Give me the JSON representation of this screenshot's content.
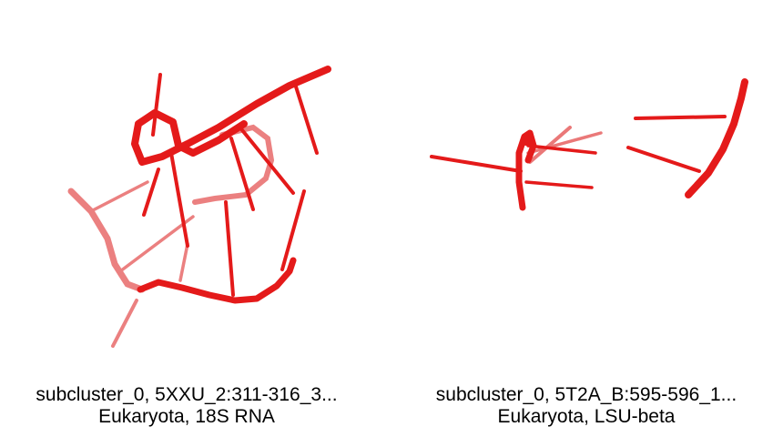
{
  "colors": {
    "background": "#ffffff",
    "rna_strand": "#e41a1a",
    "rna_strand_faded": "#e86a6a",
    "caption_text": "#000000"
  },
  "panels": [
    {
      "caption_line1": "subcluster_0, 5XXU_2:311-316_3...",
      "caption_line2": "Eukaryota, 18S RNA"
    },
    {
      "caption_line1": "subcluster_0, 5T2A_B:595-596_1...",
      "caption_line2": "Eukaryota, LSU-beta"
    }
  ]
}
